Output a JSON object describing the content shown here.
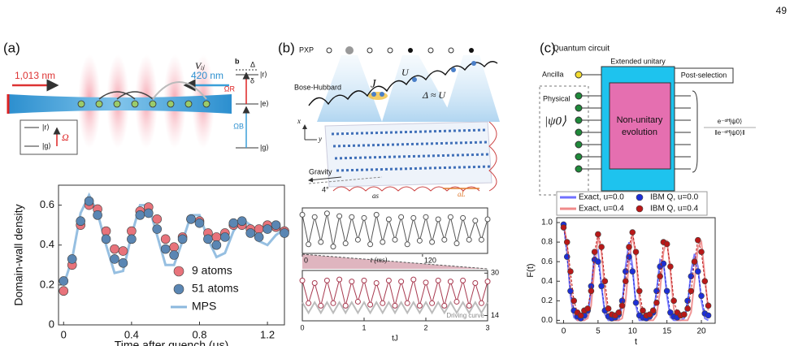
{
  "page_number": "49",
  "panel_labels": [
    "(a)",
    "(b)",
    "(c)"
  ],
  "diagram_a": {
    "laser_left": "1,013 nm",
    "laser_right": "420 nm",
    "interaction": "Vᵢⱼ",
    "state_r": "|r⟩",
    "state_g": "|g⟩",
    "rabi": "Ω",
    "sub_label": "b",
    "detuning_big": "Δ",
    "detuning_small": "δ",
    "rabi_red": "ΩR",
    "rabi_blue": "ΩB",
    "level_r": "|r⟩",
    "level_e": "|e⟩",
    "level_g": "|g⟩"
  },
  "diagram_b": {
    "pxp": "PXP",
    "bose_hubbard": "Bose-Hubbard",
    "hopping": "J",
    "interaction": "U",
    "detuning": "Δ ≈ U",
    "axis_x": "x",
    "axis_y": "y",
    "gravity": "Gravity",
    "tilt": "4°",
    "short_lattice": "as",
    "long_lattice": "aL"
  },
  "diagram_c": {
    "title": "Quantum circuit",
    "ancilla": "Ancilla",
    "physical": "Physical",
    "state": "|ψ0⟩",
    "extended_unitary": "Extended unitary",
    "evolution_line1": "Non-unitary",
    "evolution_line2": "evolution",
    "post_selection": "Post-selection",
    "output_numerator": "e⁻ᵅᴴ|ψ0⟩",
    "output_denominator": "‖e⁻ᵅᴴ|ψ0⟩‖"
  },
  "chart_data": [
    {
      "type": "scatter-line",
      "xlabel": "Time after quench (μs)",
      "ylabel": "Domain-wall density",
      "x": [
        0,
        0.05,
        0.1,
        0.15,
        0.2,
        0.25,
        0.3,
        0.35,
        0.4,
        0.45,
        0.5,
        0.55,
        0.6,
        0.65,
        0.7,
        0.75,
        0.8,
        0.85,
        0.9,
        0.95,
        1,
        1.05,
        1.1,
        1.15,
        1.2,
        1.25,
        1.3
      ],
      "xlim": [
        -0.03,
        1.3
      ],
      "ylim": [
        0,
        0.7
      ],
      "xticks": [
        0,
        0.4,
        0.8,
        1.2
      ],
      "yticks": [
        0,
        0.2,
        0.4,
        0.6
      ],
      "legend": "lower right",
      "marker": "filled",
      "series": [
        {
          "name": "9 atoms",
          "color": "#e8737b",
          "style": "dots",
          "values": [
            0.17,
            0.3,
            0.5,
            0.6,
            0.58,
            0.47,
            0.38,
            0.37,
            0.47,
            0.57,
            0.59,
            0.53,
            0.43,
            0.39,
            0.44,
            0.53,
            0.52,
            0.46,
            0.44,
            0.46,
            0.5,
            0.5,
            0.48,
            0.48,
            0.5,
            0.49,
            0.47
          ]
        },
        {
          "name": "51 atoms",
          "color": "#5a86b3",
          "style": "dots",
          "values": [
            0.22,
            0.33,
            0.52,
            0.62,
            0.55,
            0.43,
            0.33,
            0.31,
            0.43,
            0.55,
            0.56,
            0.48,
            0.38,
            0.35,
            0.43,
            0.53,
            0.51,
            0.43,
            0.4,
            0.44,
            0.51,
            0.52,
            0.46,
            0.44,
            0.48,
            0.5,
            0.46
          ]
        },
        {
          "name": "MPS",
          "color": "#8bb8de",
          "style": "line",
          "values": [
            0.2,
            0.33,
            0.56,
            0.65,
            0.56,
            0.4,
            0.26,
            0.27,
            0.45,
            0.6,
            0.6,
            0.45,
            0.3,
            0.3,
            0.42,
            0.55,
            0.55,
            0.43,
            0.34,
            0.36,
            0.47,
            0.53,
            0.5,
            0.42,
            0.4,
            0.45,
            0.48
          ]
        }
      ]
    },
    {
      "type": "scatter-line",
      "x": [
        0,
        0.1,
        0.2,
        0.3,
        0.4,
        0.5,
        0.6,
        0.7,
        0.8,
        0.9,
        1,
        1.1,
        1.2,
        1.3,
        1.4,
        1.5,
        1.6,
        1.7,
        1.8,
        1.9,
        2,
        2.1,
        2.2,
        2.3,
        2.4,
        2.5,
        2.6,
        2.7,
        2.8,
        2.9,
        3
      ],
      "xlim": [
        0,
        3
      ],
      "ylim": [
        0,
        1
      ],
      "marker": "open",
      "series": [
        {
          "color": "#555555",
          "style": "dots-line",
          "values": [
            0.85,
            0.2,
            0.8,
            0.25,
            0.88,
            0.15,
            0.82,
            0.22,
            0.8,
            0.3,
            0.78,
            0.2,
            0.85,
            0.25,
            0.75,
            0.3,
            0.8,
            0.2,
            0.78,
            0.28,
            0.8,
            0.25,
            0.75,
            0.3,
            0.8,
            0.22,
            0.78,
            0.3,
            0.72,
            0.3,
            0.75
          ]
        }
      ]
    },
    {
      "type": "ramp",
      "xlabel": "t (ms)",
      "xlim": [
        0,
        185
      ],
      "xticks": [
        0,
        120
      ],
      "color": "#c4788a"
    },
    {
      "type": "scatter-line",
      "xlabel": "tJ",
      "x": [
        0,
        0.1,
        0.2,
        0.3,
        0.4,
        0.5,
        0.6,
        0.7,
        0.8,
        0.9,
        1,
        1.1,
        1.2,
        1.3,
        1.4,
        1.5,
        1.6,
        1.7,
        1.8,
        1.9,
        2,
        2.1,
        2.2,
        2.3,
        2.4,
        2.5,
        2.6,
        2.7,
        2.8,
        2.9,
        3
      ],
      "xlim": [
        0,
        3
      ],
      "ylim": [
        0,
        1
      ],
      "xticks": [
        0,
        1,
        2,
        3
      ],
      "y2lim": [
        12,
        31
      ],
      "y2ticks": [
        14,
        30
      ],
      "legend": "inline",
      "marker": "open",
      "series": [
        {
          "color": "#a83a50",
          "style": "dots-line",
          "values": [
            0.8,
            0.35,
            0.75,
            0.3,
            0.8,
            0.35,
            0.82,
            0.3,
            0.78,
            0.38,
            0.8,
            0.32,
            0.75,
            0.35,
            0.8,
            0.3,
            0.78,
            0.35,
            0.82,
            0.3,
            0.76,
            0.35,
            0.8,
            0.3,
            0.78,
            0.38,
            0.8,
            0.3,
            0.75,
            0.35,
            0.78
          ]
        },
        {
          "name": "Driving curve",
          "color": "#b5b5b5",
          "style": "line",
          "axis": "y2",
          "values": [
            19,
            15,
            19,
            15,
            19,
            15,
            19,
            15,
            19,
            15,
            19,
            15,
            19,
            15,
            19,
            15,
            19,
            15,
            19,
            15,
            19,
            15,
            19,
            15,
            19,
            15,
            19,
            15,
            19,
            15,
            19
          ]
        }
      ]
    },
    {
      "type": "scatter-line",
      "xlabel": "t",
      "ylabel": "F(t)",
      "x": [
        0,
        0.5,
        1,
        1.5,
        2,
        2.5,
        3,
        3.5,
        4,
        4.5,
        5,
        5.5,
        6,
        6.5,
        7,
        7.5,
        8,
        8.5,
        9,
        9.5,
        10,
        10.5,
        11,
        11.5,
        12,
        12.5,
        13,
        13.5,
        14,
        14.5,
        15,
        15.5,
        16,
        16.5,
        17,
        17.5,
        18,
        18.5,
        19,
        19.5,
        20,
        20.5,
        21
      ],
      "xlim": [
        -1,
        22
      ],
      "ylim": [
        -0.03,
        1.05
      ],
      "xticks": [
        0,
        5,
        10,
        15,
        20
      ],
      "yticks": [
        {
          "value": 0,
          "label": "0.0"
        },
        0.2,
        0.4,
        0.6,
        0.8,
        {
          "value": 1,
          "label": "1.0"
        }
      ],
      "legend": "top",
      "marker": "filled",
      "series": [
        {
          "name": "Exact, u=0.0",
          "color": "#7070ff",
          "style": "line",
          "values": [
            1,
            0.7,
            0.25,
            0.03,
            0,
            0,
            0,
            0.05,
            0.3,
            0.7,
            0.72,
            0.35,
            0.06,
            0,
            0,
            0,
            0,
            0.15,
            0.55,
            0.8,
            0.55,
            0.15,
            0,
            0,
            0,
            0,
            0.05,
            0.3,
            0.62,
            0.6,
            0.25,
            0.03,
            0,
            0,
            0,
            0.02,
            0.15,
            0.5,
            0.68,
            0.55,
            0.2,
            0.02,
            0
          ]
        },
        {
          "name": "Exact, u=0.4",
          "color": "#f08a8a",
          "style": "line",
          "values": [
            1,
            0.78,
            0.35,
            0.08,
            0,
            0,
            0,
            0.02,
            0.15,
            0.55,
            0.85,
            0.7,
            0.28,
            0.04,
            0,
            0,
            0,
            0.02,
            0.2,
            0.6,
            0.88,
            0.65,
            0.22,
            0.02,
            0,
            0,
            0,
            0.05,
            0.3,
            0.7,
            0.82,
            0.5,
            0.12,
            0,
            0,
            0,
            0,
            0.08,
            0.4,
            0.75,
            0.8,
            0.45,
            0.1
          ]
        },
        {
          "name": "IBM Q, u=0.0",
          "color": "#1d2fd6",
          "style": "dots-dash",
          "values": [
            0.98,
            0.65,
            0.3,
            0.1,
            0.04,
            0.02,
            0.05,
            0.1,
            0.35,
            0.62,
            0.6,
            0.35,
            0.1,
            0.04,
            0.02,
            0.03,
            0.06,
            0.2,
            0.5,
            0.65,
            0.5,
            0.18,
            0.05,
            0.03,
            0.02,
            0.04,
            0.08,
            0.3,
            0.55,
            0.58,
            0.3,
            0.08,
            0.04,
            0.03,
            0.05,
            0.06,
            0.2,
            0.45,
            0.6,
            0.5,
            0.25,
            0.07,
            0.05
          ]
        },
        {
          "name": "IBM Q, u=0.4",
          "color": "#b81818",
          "style": "dots-dash",
          "values": [
            0.95,
            0.8,
            0.5,
            0.2,
            0.08,
            0.05,
            0.1,
            0.12,
            0.3,
            0.7,
            0.88,
            0.75,
            0.4,
            0.12,
            0.06,
            0.05,
            0.08,
            0.15,
            0.4,
            0.75,
            0.9,
            0.7,
            0.3,
            0.1,
            0.05,
            0.06,
            0.1,
            0.18,
            0.45,
            0.8,
            0.78,
            0.55,
            0.2,
            0.08,
            0.05,
            0.06,
            0.12,
            0.3,
            0.6,
            0.82,
            0.7,
            0.4,
            0.15
          ]
        }
      ]
    }
  ]
}
